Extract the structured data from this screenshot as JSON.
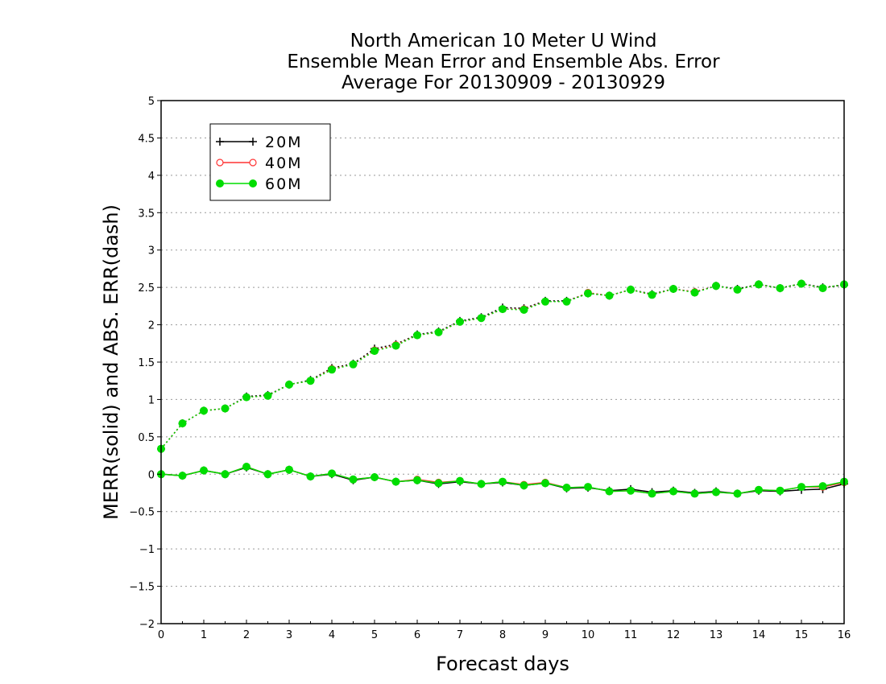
{
  "chart_data": {
    "type": "line",
    "title_lines": [
      "North American 10 Meter U Wind",
      "Ensemble Mean Error and Ensemble Abs. Error",
      "Average For 20130909 - 20130929"
    ],
    "xlabel": "Forecast days",
    "ylabel": "MERR(solid) and ABS. ERR(dash)",
    "xlim": [
      0,
      16
    ],
    "ylim": [
      -2,
      5
    ],
    "x_ticks": [
      0,
      1,
      2,
      3,
      4,
      5,
      6,
      7,
      8,
      9,
      10,
      11,
      12,
      13,
      14,
      15,
      16
    ],
    "y_ticks": [
      -2,
      -1.5,
      -1,
      -0.5,
      0,
      0.5,
      1,
      1.5,
      2,
      2.5,
      3,
      3.5,
      4,
      4.5,
      5
    ],
    "grid": "horizontal dotted",
    "legend_position": "top-left",
    "x": [
      0,
      0.5,
      1,
      1.5,
      2,
      2.5,
      3,
      3.5,
      4,
      4.5,
      5,
      5.5,
      6,
      6.5,
      7,
      7.5,
      8,
      8.5,
      9,
      9.5,
      10,
      10.5,
      11,
      11.5,
      12,
      12.5,
      13,
      13.5,
      14,
      14.5,
      15,
      15.5,
      16
    ],
    "series": [
      {
        "name": "20M",
        "color": "#000000",
        "marker": "plus",
        "abs_err": [
          0.34,
          0.68,
          0.85,
          0.88,
          1.04,
          1.06,
          1.2,
          1.26,
          1.42,
          1.48,
          1.68,
          1.74,
          1.87,
          1.91,
          2.05,
          2.1,
          2.23,
          2.22,
          2.32,
          2.32,
          2.42,
          2.39,
          2.47,
          2.41,
          2.48,
          2.44,
          2.52,
          2.48,
          2.54,
          2.49,
          2.55,
          2.5,
          2.53
        ],
        "mean_err": [
          0.0,
          -0.02,
          0.05,
          0.0,
          0.09,
          0.0,
          0.06,
          -0.03,
          0.0,
          -0.08,
          -0.04,
          -0.1,
          -0.08,
          -0.13,
          -0.1,
          -0.13,
          -0.11,
          -0.15,
          -0.12,
          -0.19,
          -0.18,
          -0.22,
          -0.2,
          -0.24,
          -0.22,
          -0.25,
          -0.23,
          -0.26,
          -0.22,
          -0.23,
          -0.21,
          -0.2,
          -0.13
        ]
      },
      {
        "name": "40M",
        "color": "#ff3333",
        "marker": "open-circle",
        "abs_err": [
          0.34,
          0.68,
          0.85,
          0.88,
          1.03,
          1.05,
          1.2,
          1.25,
          1.41,
          1.47,
          1.66,
          1.73,
          1.86,
          1.9,
          2.04,
          2.09,
          2.21,
          2.21,
          2.31,
          2.31,
          2.43,
          2.39,
          2.47,
          2.4,
          2.48,
          2.44,
          2.52,
          2.47,
          2.54,
          2.49,
          2.55,
          2.49,
          2.54
        ],
        "mean_err": [
          0.0,
          -0.02,
          0.05,
          0.0,
          0.1,
          0.0,
          0.06,
          -0.03,
          0.01,
          -0.07,
          -0.04,
          -0.1,
          -0.07,
          -0.11,
          -0.09,
          -0.13,
          -0.1,
          -0.14,
          -0.11,
          -0.18,
          -0.17,
          -0.23,
          -0.22,
          -0.26,
          -0.23,
          -0.26,
          -0.24,
          -0.26,
          -0.21,
          -0.22,
          -0.17,
          -0.17,
          -0.11
        ]
      },
      {
        "name": "60M",
        "color": "#00dd00",
        "marker": "filled-circle",
        "abs_err": [
          0.34,
          0.68,
          0.85,
          0.88,
          1.03,
          1.05,
          1.2,
          1.25,
          1.4,
          1.47,
          1.65,
          1.72,
          1.86,
          1.9,
          2.04,
          2.09,
          2.21,
          2.2,
          2.31,
          2.31,
          2.42,
          2.39,
          2.47,
          2.4,
          2.48,
          2.43,
          2.52,
          2.47,
          2.54,
          2.49,
          2.55,
          2.49,
          2.54
        ],
        "mean_err": [
          0.0,
          -0.02,
          0.05,
          0.0,
          0.1,
          0.0,
          0.06,
          -0.03,
          0.01,
          -0.07,
          -0.04,
          -0.1,
          -0.08,
          -0.12,
          -0.09,
          -0.13,
          -0.1,
          -0.15,
          -0.12,
          -0.18,
          -0.17,
          -0.23,
          -0.22,
          -0.26,
          -0.23,
          -0.26,
          -0.24,
          -0.26,
          -0.21,
          -0.22,
          -0.17,
          -0.16,
          -0.1
        ]
      }
    ]
  }
}
